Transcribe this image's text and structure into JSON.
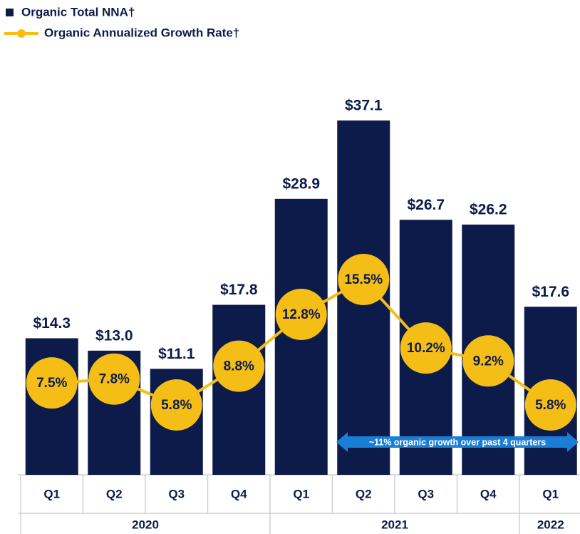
{
  "chart_data": {
    "type": "bar-line",
    "categories": [
      "Q1",
      "Q2",
      "Q3",
      "Q4",
      "Q1",
      "Q2",
      "Q3",
      "Q4",
      "Q1"
    ],
    "years": [
      "2020",
      "2020",
      "2020",
      "2020",
      "2021",
      "2021",
      "2021",
      "2021",
      "2022"
    ],
    "series": [
      {
        "name": "Organic Total NNA†",
        "type": "bar",
        "color": "#0d1b4b",
        "values": [
          14.3,
          13.0,
          11.1,
          17.8,
          28.9,
          37.1,
          26.7,
          26.2,
          17.6
        ],
        "value_labels": [
          "$14.3",
          "$13.0",
          "$11.1",
          "$17.8",
          "$28.9",
          "$37.1",
          "$26.7",
          "$26.2",
          "$17.6"
        ]
      },
      {
        "name": "Organic Annualized Growth Rate†",
        "type": "line",
        "color": "#f5be16",
        "values": [
          7.5,
          7.8,
          5.8,
          8.8,
          12.8,
          15.5,
          10.2,
          9.2,
          5.8
        ],
        "value_labels": [
          "7.5%",
          "7.8%",
          "5.8%",
          "8.8%",
          "12.8%",
          "15.5%",
          "10.2%",
          "9.2%",
          "5.8%"
        ]
      }
    ],
    "annotation": "~11% organic growth over past 4 quarters"
  }
}
